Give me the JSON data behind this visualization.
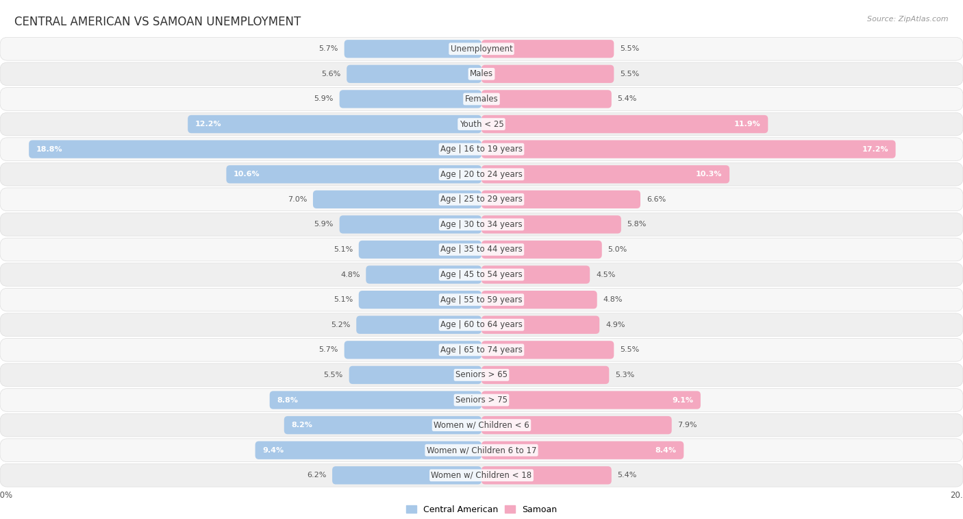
{
  "title": "CENTRAL AMERICAN VS SAMOAN UNEMPLOYMENT",
  "source": "Source: ZipAtlas.com",
  "categories": [
    "Unemployment",
    "Males",
    "Females",
    "Youth < 25",
    "Age | 16 to 19 years",
    "Age | 20 to 24 years",
    "Age | 25 to 29 years",
    "Age | 30 to 34 years",
    "Age | 35 to 44 years",
    "Age | 45 to 54 years",
    "Age | 55 to 59 years",
    "Age | 60 to 64 years",
    "Age | 65 to 74 years",
    "Seniors > 65",
    "Seniors > 75",
    "Women w/ Children < 6",
    "Women w/ Children 6 to 17",
    "Women w/ Children < 18"
  ],
  "central_american": [
    5.7,
    5.6,
    5.9,
    12.2,
    18.8,
    10.6,
    7.0,
    5.9,
    5.1,
    4.8,
    5.1,
    5.2,
    5.7,
    5.5,
    8.8,
    8.2,
    9.4,
    6.2
  ],
  "samoan": [
    5.5,
    5.5,
    5.4,
    11.9,
    17.2,
    10.3,
    6.6,
    5.8,
    5.0,
    4.5,
    4.8,
    4.9,
    5.5,
    5.3,
    9.1,
    7.9,
    8.4,
    5.4
  ],
  "color_central": "#a8c8e8",
  "color_samoan": "#f4a8c0",
  "color_central_dark": "#7bafd4",
  "color_samoan_dark": "#e87090",
  "background_color": "#ffffff",
  "row_color_light": "#f5f5f5",
  "row_color_dark": "#e8e8e8",
  "axis_limit": 20.0,
  "label_fontsize": 8.5,
  "title_fontsize": 12,
  "value_fontsize": 8.0,
  "source_fontsize": 8.0
}
